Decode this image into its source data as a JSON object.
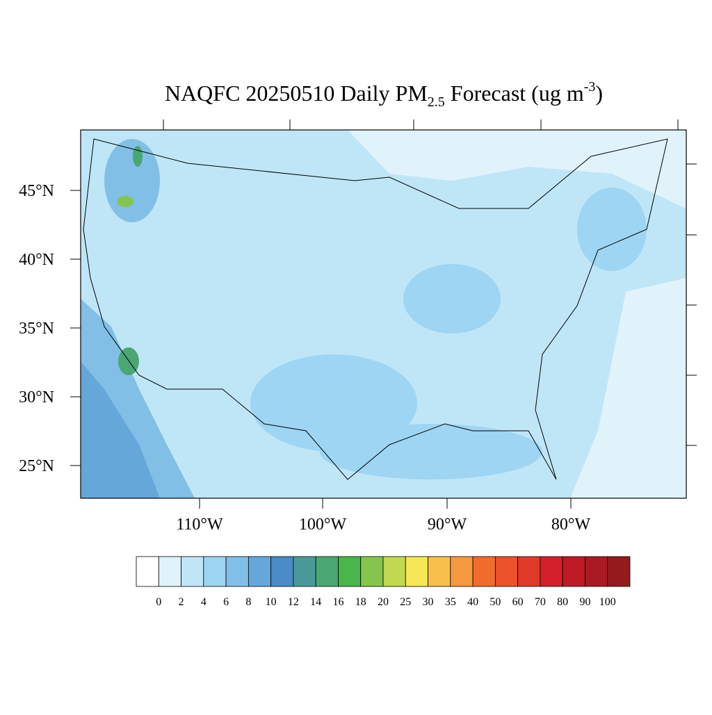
{
  "title": {
    "main": "NAQFC 20250510 Daily PM",
    "subscript": "2.5",
    "after": " Forecast (ug m",
    "superscript": "-3",
    "end": ")"
  },
  "map": {
    "lat_labels": [
      "45°N",
      "40°N",
      "35°N",
      "30°N",
      "25°N"
    ],
    "lon_labels": [
      "110°W",
      "100°W",
      "90°W",
      "80°W"
    ]
  },
  "colorbar": {
    "levels": [
      0,
      2,
      4,
      6,
      8,
      10,
      12,
      14,
      16,
      18,
      20,
      25,
      30,
      35,
      40,
      50,
      60,
      70,
      80,
      90,
      100
    ],
    "colors": [
      "#ffffff",
      "#e0f3fb",
      "#bfe6f7",
      "#9dd5f2",
      "#82bfe6",
      "#66a7da",
      "#4a8bc8",
      "#4a9a9a",
      "#4aa673",
      "#4ab54a",
      "#85c54e",
      "#c2d84e",
      "#f7e656",
      "#f7c04a",
      "#f5983f",
      "#f26c2d",
      "#ec522b",
      "#e03a28",
      "#d42029",
      "#c01a27",
      "#aa1a22",
      "#941a1c"
    ]
  }
}
